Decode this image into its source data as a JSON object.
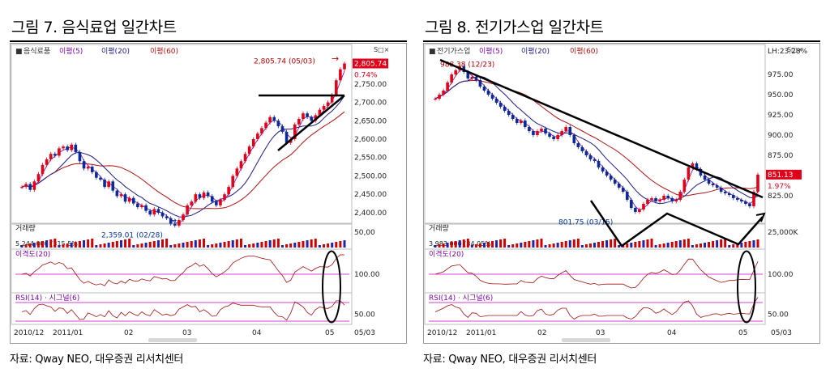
{
  "figures": [
    {
      "id": "fig7",
      "title": "그림 7. 음식료업 일간차트",
      "source": "자료: Qway NEO, 대우증권 리서치센터",
      "legend": [
        {
          "label": "음식료품",
          "color": "#333333"
        },
        {
          "label": "이평(5)",
          "color": "#7a0aa0"
        },
        {
          "label": "이평(20)",
          "color": "#1a1a80"
        },
        {
          "label": "이평(60)",
          "color": "#b01010"
        }
      ],
      "price_axis": {
        "ticks": [
          "2,750.00",
          "2,700.00",
          "2,650.00",
          "2,600.00",
          "2,550.00",
          "2,500.00",
          "2,450.00",
          "2,400.00"
        ]
      },
      "current_price": "2,805.74",
      "change_pct": "0.74%",
      "high_annotation": "2,805.74 (05/03)",
      "low_annotation": "2,359.01 (02/28)",
      "volume_label": "거래량",
      "volume_values": "5,244,000 (315.5%)",
      "volume_axis": "50,00",
      "disparity_label": "이격도(20)",
      "disparity_axis": "100.00",
      "rsi_label": "RSI(14) · 시그널(6)",
      "rsi_axis": "50.00",
      "date_ticks": [
        "2010/12",
        "2011/01",
        "02",
        "03",
        "04",
        "05",
        "05/03"
      ],
      "corner_badge": "S□×"
    },
    {
      "id": "fig8",
      "title": "그림 8. 전기가스업 일간차트",
      "source": "자료: Qway NEO, 대우증권 리서치센터",
      "legend": [
        {
          "label": "전기가스업",
          "color": "#333333"
        },
        {
          "label": "이평(5)",
          "color": "#7a0aa0"
        },
        {
          "label": "이평(20)",
          "color": "#1a1a80"
        },
        {
          "label": "이평(60)",
          "color": "#b01010"
        }
      ],
      "price_axis": {
        "ticks": [
          "975.00",
          "950.00",
          "925.00",
          "900.00",
          "875.00",
          "850.00",
          "825.00"
        ]
      },
      "current_price": "851.13",
      "change_pct": "1.97%",
      "lh_annotation": "LH:23.28%",
      "high_annotation": "988.38 (12/23)",
      "low_annotation": "801.75 (03/15)",
      "volume_label": "거래량",
      "volume_values": "3,983,000 (84.05%)",
      "volume_axis": "25,000K",
      "disparity_label": "이격도(20)",
      "disparity_axis": "100.00",
      "rsi_label": "RSI(14) · 시그널(6)",
      "rsi_axis": "50.00",
      "date_ticks": [
        "2010/12",
        "2011/01",
        "02",
        "03",
        "04",
        "05",
        "05/03"
      ],
      "corner_badge": "S□×"
    }
  ],
  "chart_data": [
    {
      "type": "candlestick",
      "title": "그림 7. 음식료업 일간차트",
      "dates": [
        "2010/12",
        "2011/01",
        "02",
        "03",
        "04",
        "05"
      ],
      "ylim": [
        2380,
        2820
      ],
      "close": [
        2470,
        2478,
        2462,
        2485,
        2505,
        2530,
        2545,
        2560,
        2555,
        2575,
        2580,
        2570,
        2585,
        2565,
        2540,
        2520,
        2525,
        2510,
        2495,
        2490,
        2470,
        2485,
        2460,
        2445,
        2450,
        2430,
        2440,
        2425,
        2415,
        2420,
        2405,
        2395,
        2410,
        2400,
        2390,
        2385,
        2370,
        2365,
        2380,
        2395,
        2420,
        2430,
        2450,
        2440,
        2455,
        2445,
        2430,
        2420,
        2435,
        2450,
        2470,
        2500,
        2520,
        2540,
        2560,
        2580,
        2600,
        2615,
        2630,
        2645,
        2660,
        2650,
        2635,
        2620,
        2590,
        2600,
        2640,
        2655,
        2670,
        2660,
        2650,
        2665,
        2680,
        2690,
        2700,
        2720,
        2760,
        2790,
        2805.74
      ],
      "volume_last": 5244000,
      "high": {
        "value": 2805.74,
        "date": "05/03"
      },
      "low": {
        "value": 2359.01,
        "date": "02/28"
      }
    },
    {
      "type": "candlestick",
      "title": "그림 8. 전기가스업 일간차트",
      "dates": [
        "2010/12",
        "2011/01",
        "02",
        "03",
        "04",
        "05"
      ],
      "ylim": [
        795,
        995
      ],
      "close": [
        945,
        950,
        955,
        965,
        975,
        980,
        985,
        978,
        970,
        972,
        968,
        960,
        955,
        950,
        945,
        940,
        935,
        930,
        925,
        920,
        915,
        918,
        910,
        905,
        900,
        905,
        908,
        902,
        898,
        895,
        900,
        905,
        910,
        900,
        890,
        885,
        880,
        875,
        870,
        868,
        860,
        855,
        850,
        845,
        840,
        835,
        830,
        820,
        810,
        805,
        808,
        815,
        820,
        822,
        818,
        820,
        825,
        822,
        818,
        820,
        830,
        845,
        860,
        865,
        858,
        850,
        845,
        840,
        838,
        835,
        830,
        828,
        826,
        822,
        820,
        818,
        815,
        812,
        830,
        851.13
      ],
      "volume_last": 3983000,
      "high": {
        "value": 988.38,
        "date": "12/23"
      },
      "low": {
        "value": 801.75,
        "date": "03/15"
      }
    }
  ]
}
